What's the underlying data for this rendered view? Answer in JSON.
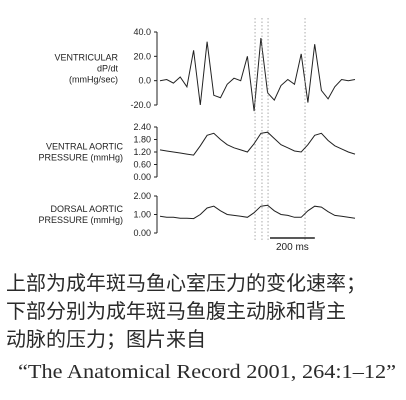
{
  "chart_data": [
    {
      "type": "line",
      "ylabel_lines": [
        "VENTRICULAR",
        "dP/dt",
        "(mmHg/sec)"
      ],
      "x": [
        0,
        30,
        60,
        90,
        120,
        150,
        180,
        210,
        240,
        270,
        300,
        330,
        360,
        390,
        420,
        450,
        480,
        510,
        540,
        570,
        600,
        630,
        660,
        690,
        720,
        750,
        780,
        810,
        840,
        870
      ],
      "values": [
        0,
        1,
        -2,
        3,
        -5,
        25,
        -20,
        32,
        -12,
        -14,
        -3,
        2,
        0,
        20,
        -25,
        35,
        -10,
        -16,
        -4,
        1,
        -3,
        22,
        -18,
        30,
        -8,
        -15,
        -5,
        1,
        0,
        1
      ],
      "color": "#222222",
      "xlim": [
        0,
        870
      ],
      "ylim": [
        -20,
        40
      ],
      "yticks": [
        {
          "value": 40,
          "label": "40.0"
        },
        {
          "value": 20,
          "label": "20.0"
        },
        {
          "value": 0,
          "label": "0.0"
        },
        {
          "value": -20,
          "label": "-20.0"
        }
      ],
      "vlines": [
        424,
        455,
        482,
        647
      ]
    },
    {
      "type": "line",
      "ylabel_lines": [
        "VENTRAL AORTIC",
        "PRESSURE (mmHg)"
      ],
      "x": [
        0,
        30,
        60,
        90,
        120,
        150,
        180,
        210,
        240,
        270,
        300,
        330,
        360,
        390,
        420,
        450,
        480,
        510,
        540,
        570,
        600,
        630,
        660,
        690,
        720,
        750,
        780,
        810,
        840,
        870
      ],
      "values": [
        1.3,
        1.25,
        1.2,
        1.15,
        1.1,
        1.05,
        1.5,
        2.0,
        2.1,
        1.8,
        1.55,
        1.4,
        1.3,
        1.2,
        1.6,
        2.1,
        2.15,
        1.85,
        1.55,
        1.4,
        1.25,
        1.2,
        1.55,
        2.0,
        2.1,
        1.75,
        1.5,
        1.35,
        1.2,
        1.1
      ],
      "color": "#222222",
      "xlim": [
        0,
        870
      ],
      "ylim": [
        0,
        2.4
      ],
      "yticks": [
        {
          "value": 2.4,
          "label": "2.40"
        },
        {
          "value": 1.8,
          "label": "1.80"
        },
        {
          "value": 1.2,
          "label": "1.20"
        },
        {
          "value": 0.6,
          "label": "0.60"
        },
        {
          "value": 0,
          "label": "0.00"
        }
      ]
    },
    {
      "type": "line",
      "ylabel_lines": [
        "DORSAL AORTIC",
        "PRESSURE (mmHg)"
      ],
      "x": [
        0,
        30,
        60,
        90,
        120,
        150,
        180,
        210,
        240,
        270,
        300,
        330,
        360,
        390,
        420,
        450,
        480,
        510,
        540,
        570,
        600,
        630,
        660,
        690,
        720,
        750,
        780,
        810,
        840,
        870
      ],
      "values": [
        0.9,
        0.85,
        0.85,
        0.8,
        0.8,
        0.78,
        1.0,
        1.35,
        1.45,
        1.2,
        1.0,
        0.95,
        0.9,
        0.85,
        1.1,
        1.45,
        1.5,
        1.2,
        1.0,
        0.95,
        0.85,
        0.85,
        1.2,
        1.45,
        1.4,
        1.15,
        0.95,
        0.9,
        0.85,
        0.8
      ],
      "color": "#222222",
      "xlim": [
        0,
        870
      ],
      "ylim": [
        0,
        2
      ],
      "yticks": [
        {
          "value": 2,
          "label": "2.00"
        },
        {
          "value": 1,
          "label": "1.00"
        },
        {
          "value": 0,
          "label": "0.00"
        }
      ],
      "scale_bar": {
        "value": 200,
        "label": "200 ms"
      }
    }
  ],
  "caption": {
    "lines": [
      "上部为成年斑马鱼心室压力的变化速率；",
      "下部分别为成年斑马鱼腹主动脉和背主",
      "动脉的压力；图片来自",
      "“The Anatomical Record 2001, 264:1–12”"
    ]
  }
}
